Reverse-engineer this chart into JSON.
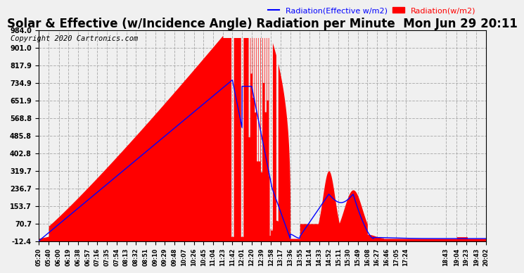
{
  "title": "Solar & Effective (w/Incidence Angle) Radiation per Minute  Mon Jun 29 20:11",
  "copyright": "Copyright 2020 Cartronics.com",
  "legend_blue": "Radiation(Effective w/m2)",
  "legend_red": "Radiation(w/m2)",
  "yticks": [
    -12.4,
    70.7,
    153.7,
    236.7,
    319.7,
    402.8,
    485.8,
    568.8,
    651.9,
    734.9,
    817.9,
    901.0,
    984.0
  ],
  "ylim": [
    -12.4,
    984.0
  ],
  "xtick_labels": [
    "05:20",
    "05:40",
    "06:00",
    "06:19",
    "06:38",
    "06:57",
    "07:16",
    "07:35",
    "07:54",
    "08:13",
    "08:32",
    "08:51",
    "09:10",
    "09:29",
    "09:48",
    "10:07",
    "10:26",
    "10:45",
    "11:04",
    "11:23",
    "11:42",
    "12:01",
    "12:20",
    "12:39",
    "12:58",
    "13:17",
    "13:36",
    "13:55",
    "14:14",
    "14:33",
    "14:52",
    "15:11",
    "15:30",
    "15:49",
    "16:08",
    "16:27",
    "16:46",
    "17:05",
    "17:24",
    "18:43",
    "19:04",
    "19:23",
    "19:43",
    "20:02"
  ],
  "bg_color": "#f0f0f0",
  "red_color": "#ff0000",
  "blue_color": "#0000ff",
  "grid_color": "#aaaaaa",
  "title_color": "#000000",
  "title_fontsize": 12,
  "copyright_fontsize": 7.5
}
